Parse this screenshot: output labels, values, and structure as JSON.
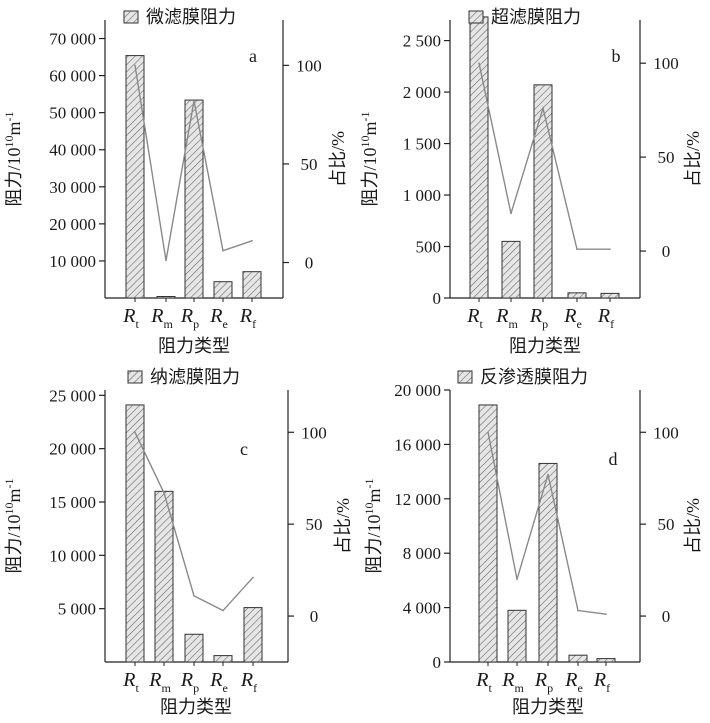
{
  "chart_data": [
    {
      "panel": "a",
      "type": "bar",
      "legend": "微滤膜阻力",
      "xlabel": "阻力类型",
      "ylabel": "阻力/10",
      "ylabel_sup": "10",
      "ylabel_unit": "m",
      "ylabel_unit_sup": "-1",
      "y2label": "占比/%",
      "categories": [
        {
          "main": "R",
          "sub": "t"
        },
        {
          "main": "R",
          "sub": "m"
        },
        {
          "main": "R",
          "sub": "p"
        },
        {
          "main": "R",
          "sub": "e"
        },
        {
          "main": "R",
          "sub": "f"
        }
      ],
      "values": [
        65400,
        400,
        53400,
        4400,
        7100
      ],
      "line_values": [
        100,
        1,
        82,
        6,
        11
      ],
      "ylim": [
        0,
        75000
      ],
      "yticks": [
        10000,
        20000,
        30000,
        40000,
        50000,
        60000,
        70000
      ],
      "yticklabels": [
        "10 000",
        "20 000",
        "30 000",
        "40 000",
        "50 000",
        "60 000",
        "70 000"
      ],
      "y2lim": [
        -18,
        123
      ],
      "y2ticks": [
        0,
        50,
        100
      ],
      "y2ticklabels": [
        "0",
        "50",
        "100"
      ]
    },
    {
      "panel": "b",
      "type": "bar",
      "legend": "超滤膜阻力",
      "xlabel": "阻力类型",
      "ylabel": "阻力/10",
      "ylabel_sup": "10",
      "ylabel_unit": "m",
      "ylabel_unit_sup": "-1",
      "y2label": "占比/%",
      "categories": [
        {
          "main": "R",
          "sub": "t"
        },
        {
          "main": "R",
          "sub": "m"
        },
        {
          "main": "R",
          "sub": "p"
        },
        {
          "main": "R",
          "sub": "e"
        },
        {
          "main": "R",
          "sub": "f"
        }
      ],
      "values": [
        2730,
        550,
        2070,
        50,
        45
      ],
      "line_values": [
        100,
        20,
        76,
        1,
        1
      ],
      "ylim": [
        0,
        2700
      ],
      "yticks": [
        0,
        500,
        1000,
        1500,
        2000,
        2500
      ],
      "yticklabels": [
        "0",
        "500",
        "1 000",
        "1 500",
        "2 000",
        "2 500"
      ],
      "y2lim": [
        -25,
        123
      ],
      "y2ticks": [
        0,
        50,
        100
      ],
      "y2ticklabels": [
        "0",
        "50",
        "100"
      ]
    },
    {
      "panel": "c",
      "type": "bar",
      "legend": "纳滤膜阻力",
      "xlabel": "阻力类型",
      "ylabel": "阻力/10",
      "ylabel_sup": "10",
      "ylabel_unit": "m",
      "ylabel_unit_sup": "-1",
      "y2label": "占比/%",
      "categories": [
        {
          "main": "R",
          "sub": "t"
        },
        {
          "main": "R",
          "sub": "m"
        },
        {
          "main": "R",
          "sub": "p"
        },
        {
          "main": "R",
          "sub": "e"
        },
        {
          "main": "R",
          "sub": "f"
        }
      ],
      "values": [
        24100,
        16000,
        2600,
        600,
        5100
      ],
      "line_values": [
        100,
        67,
        11,
        3,
        21
      ],
      "ylim": [
        0,
        25500
      ],
      "yticks": [
        5000,
        10000,
        15000,
        20000,
        25000
      ],
      "yticklabels": [
        "5 000",
        "10 000",
        "15 000",
        "20 000",
        "25 000"
      ],
      "y2lim": [
        -25,
        123
      ],
      "y2ticks": [
        0,
        50,
        100
      ],
      "y2ticklabels": [
        "0",
        "50",
        "100"
      ]
    },
    {
      "panel": "d",
      "type": "bar",
      "legend": "反渗透膜阻力",
      "xlabel": "阻力类型",
      "ylabel": "阻力/10",
      "ylabel_sup": "10",
      "ylabel_unit": "m",
      "ylabel_unit_sup": "-1",
      "y2label": "占比/%",
      "categories": [
        {
          "main": "R",
          "sub": "t"
        },
        {
          "main": "R",
          "sub": "m"
        },
        {
          "main": "R",
          "sub": "p"
        },
        {
          "main": "R",
          "sub": "e"
        },
        {
          "main": "R",
          "sub": "f"
        }
      ],
      "values": [
        18900,
        3800,
        14600,
        500,
        250
      ],
      "line_values": [
        100,
        20,
        77,
        3,
        1
      ],
      "ylim": [
        0,
        20000
      ],
      "yticks": [
        0,
        4000,
        8000,
        12000,
        16000,
        20000
      ],
      "yticklabels": [
        "0",
        "4 000",
        "8 000",
        "12 000",
        "16 000",
        "20 000"
      ],
      "y2lim": [
        -25,
        123
      ],
      "y2ticks": [
        0,
        50,
        100
      ],
      "y2ticklabels": [
        "0",
        "50",
        "100"
      ]
    }
  ]
}
